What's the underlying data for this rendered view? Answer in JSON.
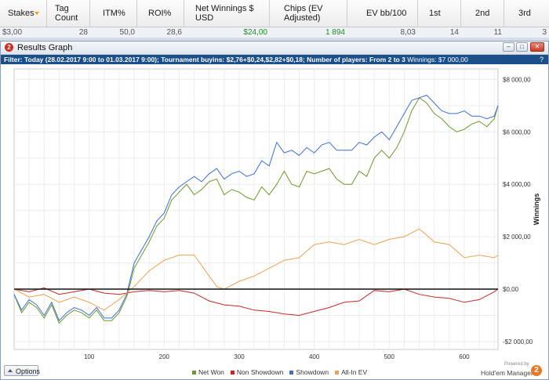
{
  "stats_table": {
    "columns": [
      "Stakes",
      "Tag Count",
      "ITM%",
      "ROI%",
      "Net Winnings $ USD",
      "Chips (EV Adjusted)",
      "EV bb/100",
      "1st",
      "2nd",
      "3rd"
    ],
    "row": [
      "$3,00",
      "28",
      "50,0",
      "28,6",
      "$24,00",
      "1 894",
      "8,03",
      "14",
      "11",
      "3"
    ],
    "colors": {
      "positive": "#1f8f1f"
    }
  },
  "window": {
    "title": "Results Graph",
    "logo_char": "2",
    "btn_minimize": "–",
    "btn_restore": "□",
    "btn_close": "✕",
    "help": "?"
  },
  "filter": {
    "prefix": "Filter:",
    "text": "Today (28.02.2017 9:00 to 01.03.2017 9:00); Tournament buyins: $2,76+$0,24,$2,82+$0,18; Number of players: From 2 to 3",
    "winnings": "Winnings: $7 000,00"
  },
  "footer": {
    "options_label": "Options",
    "brand_powered": "Powered by",
    "brand_name": "Hold'em Manager",
    "brand_logo": "2"
  },
  "chart_data": {
    "type": "line",
    "xlabel": "Hands",
    "ylabel": "Winnings",
    "xlim": [
      0,
      645
    ],
    "ylim": [
      -2300,
      8400
    ],
    "xticks": [
      100,
      200,
      300,
      400,
      500,
      600
    ],
    "yticks": [
      {
        "value": 8000,
        "label": "$8 000,00"
      },
      {
        "value": 6000,
        "label": "$6 000,00"
      },
      {
        "value": 4000,
        "label": "$4 000,00"
      },
      {
        "value": 2000,
        "label": "$2 000,00"
      },
      {
        "value": 0,
        "label": "$0,00"
      },
      {
        "value": -2000,
        "label": "-$2 000,00"
      }
    ],
    "grid": true,
    "legend_position": "bottom",
    "series": [
      {
        "name": "Net Won",
        "color": "#6a9a2a",
        "x": [
          0,
          10,
          20,
          30,
          40,
          50,
          60,
          70,
          80,
          90,
          100,
          110,
          120,
          130,
          140,
          150,
          160,
          170,
          180,
          190,
          200,
          210,
          220,
          230,
          240,
          250,
          260,
          270,
          280,
          290,
          300,
          310,
          320,
          330,
          340,
          350,
          360,
          370,
          380,
          390,
          400,
          410,
          420,
          430,
          440,
          450,
          460,
          470,
          480,
          490,
          500,
          510,
          520,
          530,
          540,
          550,
          560,
          570,
          580,
          590,
          600,
          610,
          620,
          630,
          640,
          645
        ],
        "y": [
          -200,
          -900,
          -500,
          -700,
          -1100,
          -600,
          -1300,
          -1000,
          -800,
          -900,
          -1100,
          -800,
          -1200,
          -1200,
          -900,
          -300,
          800,
          1300,
          1800,
          2400,
          2700,
          3400,
          3700,
          4000,
          3600,
          3800,
          4100,
          4200,
          3600,
          3800,
          3700,
          3500,
          3400,
          3900,
          3600,
          4000,
          4500,
          4000,
          3900,
          4500,
          4400,
          4500,
          4600,
          4200,
          4000,
          4000,
          4500,
          4300,
          5000,
          5300,
          5000,
          5400,
          6000,
          6800,
          7300,
          7100,
          6700,
          6500,
          6200,
          6000,
          6100,
          6300,
          6400,
          6200,
          6500,
          7000
        ]
      },
      {
        "name": "Non Showdown",
        "color": "#c62828",
        "x": [
          0,
          20,
          40,
          60,
          80,
          100,
          120,
          140,
          160,
          180,
          200,
          220,
          240,
          260,
          280,
          300,
          320,
          340,
          360,
          380,
          400,
          420,
          440,
          460,
          480,
          500,
          520,
          540,
          560,
          580,
          600,
          620,
          640,
          645
        ],
        "y": [
          0,
          -100,
          50,
          -200,
          -100,
          0,
          -150,
          -200,
          -100,
          -50,
          -100,
          -50,
          -150,
          -450,
          -600,
          -650,
          -800,
          -850,
          -950,
          -1000,
          -850,
          -700,
          -500,
          -450,
          -50,
          -100,
          0,
          -200,
          -300,
          -350,
          -500,
          -400,
          -100,
          0
        ]
      },
      {
        "name": "Showdown",
        "color": "#3b6fd4",
        "x": [
          0,
          10,
          20,
          30,
          40,
          50,
          60,
          70,
          80,
          90,
          100,
          110,
          120,
          130,
          140,
          150,
          160,
          170,
          180,
          190,
          200,
          210,
          220,
          230,
          240,
          250,
          260,
          270,
          280,
          290,
          300,
          310,
          320,
          330,
          340,
          350,
          360,
          370,
          380,
          390,
          400,
          410,
          420,
          430,
          440,
          450,
          460,
          470,
          480,
          490,
          500,
          510,
          520,
          530,
          540,
          550,
          560,
          570,
          580,
          590,
          600,
          610,
          620,
          630,
          640,
          645
        ],
        "y": [
          -200,
          -800,
          -400,
          -600,
          -1000,
          -500,
          -1200,
          -900,
          -700,
          -800,
          -1000,
          -700,
          -1100,
          -1100,
          -800,
          -200,
          1000,
          1500,
          2000,
          2600,
          2900,
          3600,
          3900,
          4100,
          4300,
          4100,
          4400,
          4600,
          4200,
          4400,
          4500,
          4300,
          4400,
          4900,
          4700,
          5600,
          5200,
          5300,
          5100,
          5400,
          5200,
          5500,
          5600,
          5300,
          5300,
          5300,
          5600,
          5500,
          5800,
          6000,
          5700,
          6200,
          6700,
          7200,
          7300,
          7400,
          7100,
          6800,
          6700,
          6700,
          6800,
          6600,
          6600,
          6500,
          6600,
          7000
        ]
      },
      {
        "name": "All-In EV",
        "color": "#f0a050",
        "x": [
          0,
          20,
          40,
          60,
          80,
          100,
          120,
          140,
          160,
          180,
          200,
          220,
          240,
          260,
          270,
          280,
          300,
          320,
          340,
          360,
          380,
          400,
          420,
          440,
          460,
          480,
          500,
          520,
          540,
          560,
          580,
          600,
          620,
          640,
          645
        ],
        "y": [
          0,
          -300,
          -200,
          -500,
          -300,
          -500,
          -800,
          -400,
          100,
          700,
          1100,
          1300,
          1300,
          500,
          100,
          0,
          300,
          500,
          800,
          1100,
          1200,
          1700,
          1800,
          1700,
          1900,
          1700,
          1900,
          2000,
          2300,
          1800,
          1700,
          1200,
          1300,
          1200,
          1300
        ]
      }
    ]
  }
}
